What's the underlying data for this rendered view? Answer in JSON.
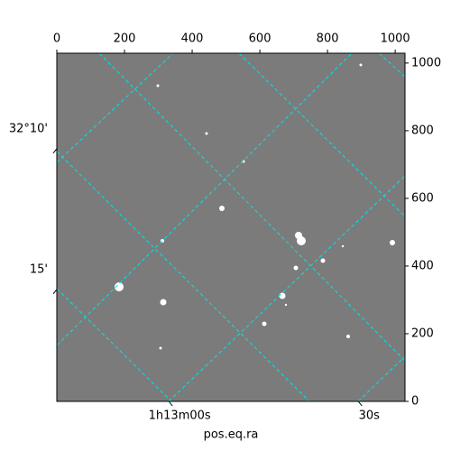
{
  "chart_data": {
    "type": "image",
    "xlabel": "pos.eq.ra",
    "xlim": [
      0,
      1029
    ],
    "ylim": [
      0,
      1029
    ],
    "xticks": [
      0,
      200,
      400,
      600,
      800,
      1000
    ],
    "yticks": [
      0,
      200,
      400,
      600,
      800,
      1000
    ],
    "world_xticks": [
      {
        "value": 331,
        "label": "1h13m00s"
      },
      {
        "value": 891,
        "label": "30s"
      }
    ],
    "world_yticks": [
      {
        "value": 747,
        "label": "32°10'"
      },
      {
        "value": 331,
        "label": "15'"
      }
    ],
    "grid_color": "#00e5e5"
  }
}
